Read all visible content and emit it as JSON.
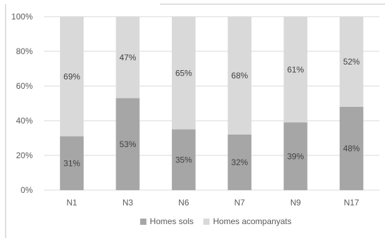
{
  "chart_data": {
    "type": "bar",
    "stacked": true,
    "stack_mode": "percent",
    "categories": [
      "N1",
      "N3",
      "N6",
      "N7",
      "N9",
      "N17"
    ],
    "series": [
      {
        "name": "Homes sols",
        "values": [
          31,
          53,
          35,
          32,
          39,
          48
        ],
        "labels": [
          "31%",
          "53%",
          "35%",
          "32%",
          "39%",
          "48%"
        ],
        "color": "#a6a6a6"
      },
      {
        "name": "Homes acompanyats",
        "values": [
          69,
          47,
          65,
          68,
          61,
          52
        ],
        "labels": [
          "69%",
          "47%",
          "65%",
          "68%",
          "61%",
          "52%"
        ],
        "color": "#d9d9d9"
      }
    ],
    "ylim": [
      0,
      100
    ],
    "yticks": [
      {
        "value": 0,
        "label": "0%"
      },
      {
        "value": 20,
        "label": "20%"
      },
      {
        "value": 40,
        "label": "40%"
      },
      {
        "value": 60,
        "label": "60%"
      },
      {
        "value": 80,
        "label": "80%"
      },
      {
        "value": 100,
        "label": "100%"
      }
    ],
    "grid": true,
    "legend_position": "bottom-center"
  }
}
